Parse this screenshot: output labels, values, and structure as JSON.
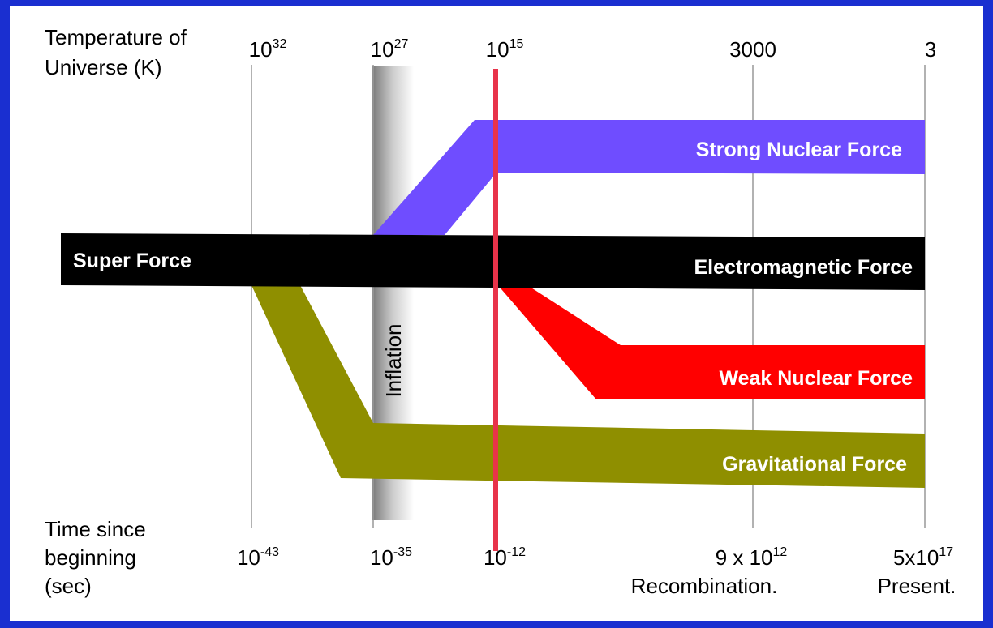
{
  "temperature_axis": {
    "label": [
      "Temperature of",
      "Universe (K)"
    ],
    "ticks": [
      {
        "base": "10",
        "exponent": "32"
      },
      {
        "base": "10",
        "exponent": "27"
      },
      {
        "base": "10",
        "exponent": "15"
      },
      {
        "base": "3000"
      },
      {
        "base": "3"
      }
    ]
  },
  "time_axis": {
    "label": [
      "Time since",
      "beginning",
      "(sec)"
    ],
    "ticks": [
      {
        "base": "10",
        "exponent": "-43"
      },
      {
        "base": "10",
        "exponent": "-35"
      },
      {
        "base": "10",
        "exponent": "-12"
      },
      {
        "base": "9 x 10",
        "exponent": "12",
        "note": "Recombination."
      },
      {
        "base": "5x10",
        "exponent": "17",
        "note": "Present."
      }
    ]
  },
  "forces": {
    "super": "Super Force",
    "strong": "Strong Nuclear Force",
    "electromagnetic": "Electromagnetic Force",
    "weak": "Weak Nuclear Force",
    "gravitational": "Gravitational Force"
  },
  "inflation": "Inflation"
}
